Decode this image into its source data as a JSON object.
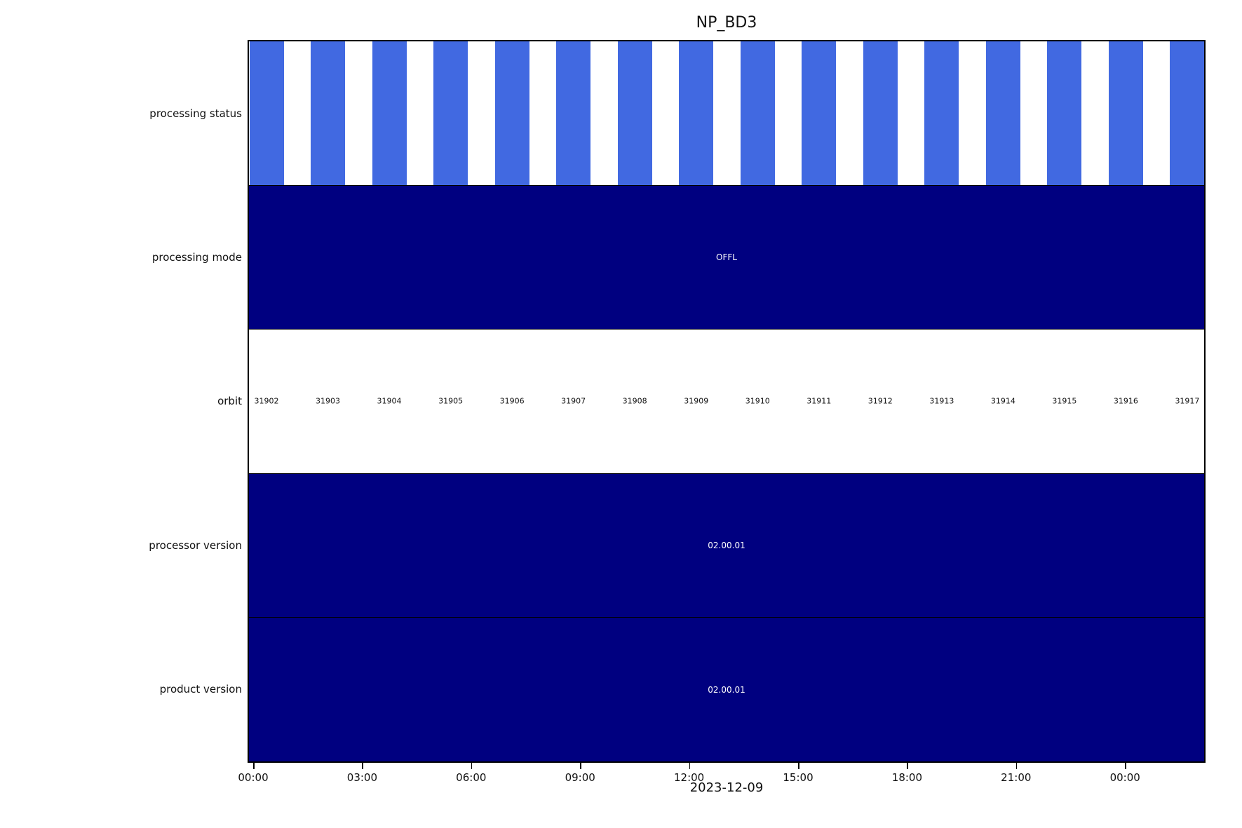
{
  "chart_data": {
    "type": "bar",
    "title": "NP_BD3",
    "date_label": "2023-12-09",
    "x_tick_labels": [
      "00:00",
      "03:00",
      "06:00",
      "09:00",
      "12:00",
      "15:00",
      "18:00",
      "21:00",
      "00:00"
    ],
    "colors": {
      "bar_blue": "#4169E1",
      "navy": "#000080",
      "frame": "#000000"
    },
    "rows": [
      {
        "name": "processing status",
        "type": "orbit-bars",
        "bar_count": 16
      },
      {
        "name": "processing mode",
        "type": "band",
        "value": "OFFL"
      },
      {
        "name": "orbit",
        "type": "labels",
        "values": [
          "31902",
          "31903",
          "31904",
          "31905",
          "31906",
          "31907",
          "31908",
          "31909",
          "31910",
          "31911",
          "31912",
          "31913",
          "31914",
          "31915",
          "31916",
          "31917"
        ]
      },
      {
        "name": "processor version",
        "type": "band",
        "value": "02.00.01"
      },
      {
        "name": "product version",
        "type": "band",
        "value": "02.00.01"
      }
    ]
  }
}
